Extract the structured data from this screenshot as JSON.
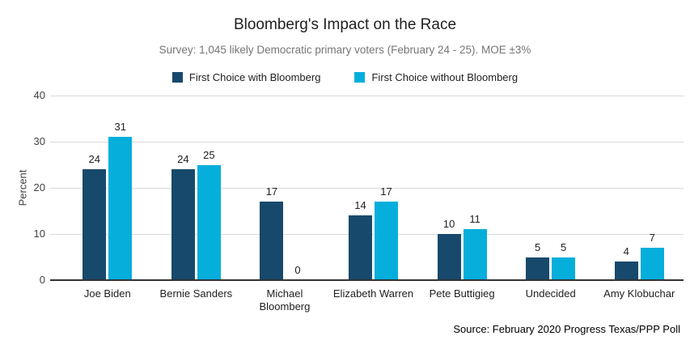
{
  "chart_data": {
    "type": "bar",
    "title": "Bloomberg's Impact on the Race",
    "subtitle": "Survey: 1,045 likely Democratic primary voters (February 24 - 25). MOE ±3%",
    "categories": [
      "Joe Biden",
      "Bernie Sanders",
      "Michael Bloomberg",
      "Elizabeth Warren",
      "Pete Buttigieg",
      "Undecided",
      "Amy Klobuchar"
    ],
    "series": [
      {
        "name": "First Choice with Bloomberg",
        "color": "#17496C",
        "values": [
          24,
          24,
          17,
          14,
          10,
          5,
          4
        ]
      },
      {
        "name": "First Choice without Bloomberg",
        "color": "#06AEDC",
        "values": [
          31,
          25,
          0,
          17,
          11,
          5,
          7
        ]
      }
    ],
    "xlabel": "",
    "ylabel": "Percent",
    "ylim": [
      0,
      40
    ],
    "yticks": [
      0,
      10,
      20,
      30,
      40
    ],
    "grid": true,
    "legend_position": "top",
    "data_labels": true,
    "source": "Source: February 2020 Progress Texas/PPP Poll",
    "colors": {
      "gridline": "#d9d9d9",
      "baseline": "#333333",
      "subtitle_text": "#757575",
      "axis_text": "#424242",
      "label_text": "#212121"
    }
  }
}
